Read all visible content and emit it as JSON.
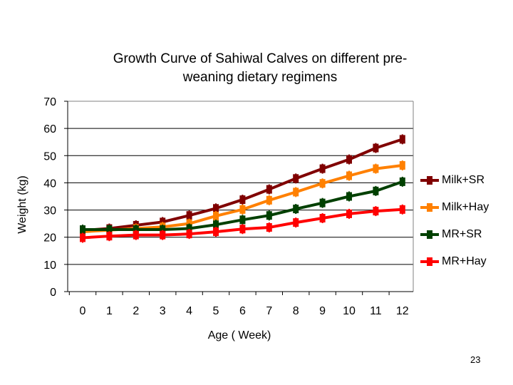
{
  "chart_data": {
    "type": "line",
    "title": "Growth Curve of Sahiwal Calves on different pre-weaning dietary regimens",
    "title_lines": [
      "Growth Curve of Sahiwal Calves on different pre-",
      "weaning dietary regimens"
    ],
    "xlabel": "Age ( Week)",
    "ylabel": "Weight (kg)",
    "x": [
      0,
      1,
      2,
      3,
      4,
      5,
      6,
      7,
      8,
      9,
      10,
      11,
      12
    ],
    "x_tick_labels": [
      "0",
      "1",
      "2",
      "3",
      "4",
      "5",
      "6",
      "7",
      "8",
      "9",
      "10",
      "11",
      "12"
    ],
    "y_ticks": [
      0,
      10,
      20,
      30,
      40,
      50,
      60,
      70
    ],
    "ylim": [
      0,
      70
    ],
    "grid": "horizontal",
    "legend_position": "right",
    "series": [
      {
        "name": "Milk+SR",
        "color": "#800000",
        "values": [
          22.5,
          23.2,
          24.4,
          25.6,
          28.0,
          30.6,
          33.8,
          37.6,
          41.6,
          45.2,
          48.6,
          52.8,
          56.0
        ]
      },
      {
        "name": "Milk+Hay",
        "color": "#FF8000",
        "values": [
          22.0,
          22.6,
          23.2,
          23.8,
          25.0,
          27.8,
          30.2,
          33.6,
          36.6,
          39.8,
          42.6,
          45.2,
          46.4
        ]
      },
      {
        "name": "MR+SR",
        "color": "#004000",
        "values": [
          22.8,
          22.8,
          22.8,
          22.8,
          23.2,
          24.6,
          26.4,
          28.0,
          30.4,
          32.6,
          35.0,
          37.0,
          40.4
        ]
      },
      {
        "name": "MR+Hay",
        "color": "#FF0000",
        "values": [
          19.8,
          20.4,
          20.8,
          20.8,
          21.2,
          22.0,
          23.0,
          23.6,
          25.4,
          27.0,
          28.6,
          29.6,
          30.2
        ]
      }
    ]
  },
  "page_number": "23"
}
